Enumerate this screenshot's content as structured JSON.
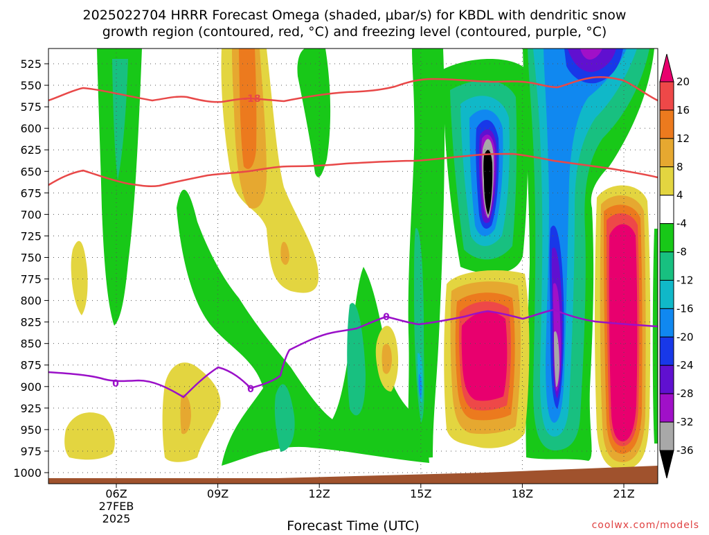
{
  "chart_data": {
    "type": "heatmap",
    "title_line1": "2025022704 HRRR Forecast Omega (shaded, μbar/s) for KBDL with dendritic snow",
    "title_line2": "growth region (contoured, red, °C) and freezing level (contoured, purple, °C)",
    "xlabel": "Forecast Time (UTC)",
    "credit": "coolwx.com/models",
    "x_ticks": [
      "06Z",
      "09Z",
      "12Z",
      "15Z",
      "18Z",
      "21Z"
    ],
    "x_date_lines": [
      "27FEB",
      "2025"
    ],
    "y_ticks": [
      525,
      550,
      575,
      600,
      625,
      650,
      675,
      700,
      725,
      750,
      775,
      800,
      825,
      850,
      875,
      900,
      925,
      950,
      975,
      1000
    ],
    "colorbar": {
      "labels": [
        "20",
        "16",
        "12",
        "8",
        "4",
        "-4",
        "-8",
        "-12",
        "-16",
        "-20",
        "-24",
        "-28",
        "-32",
        "-36"
      ],
      "colors": [
        "#e8006e",
        "#ee4848",
        "#ec7a1e",
        "#e6a830",
        "#e3d540",
        "#ffffff",
        "#18c818",
        "#18c080",
        "#10b8c8",
        "#1088f0",
        "#1838e8",
        "#6010d0",
        "#a010c8",
        "#a8a8a8",
        "#000000"
      ]
    },
    "contour_labels": {
      "dgz": "-18",
      "freezing": "0"
    },
    "colors": {
      "dgz": "#e84848",
      "freezing": "#9a10c8",
      "ground": "#a0522d"
    }
  }
}
